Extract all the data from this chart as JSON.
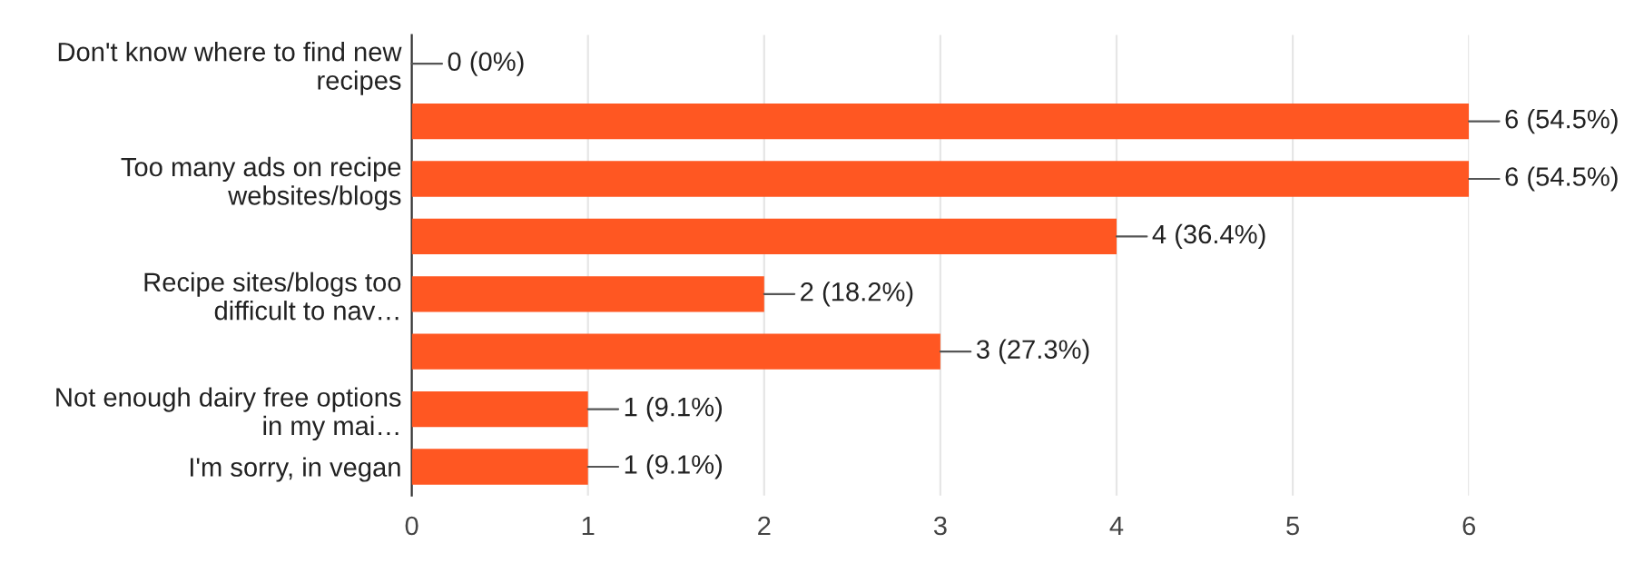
{
  "chart_data": {
    "type": "bar",
    "orientation": "horizontal",
    "categories": [
      "Don't know where to find new recipes",
      null,
      "Too many ads on recipe websites/blogs",
      null,
      "Recipe sites/blogs too difficult to nav…",
      null,
      "Not enough dairy free options in my mai…",
      "I'm sorry, in vegan"
    ],
    "values": [
      0,
      6,
      6,
      4,
      2,
      3,
      1,
      1
    ],
    "value_labels": [
      "0 (0%)",
      "6 (54.5%)",
      "6 (54.5%)",
      "4 (36.4%)",
      "2 (18.2%)",
      "3 (27.3%)",
      "1 (9.1%)",
      "1 (9.1%)"
    ],
    "color": "#ff5722",
    "xlim": [
      0,
      6
    ],
    "xticks": [
      0,
      1,
      2,
      3,
      4,
      5,
      6
    ],
    "grid": "x"
  }
}
